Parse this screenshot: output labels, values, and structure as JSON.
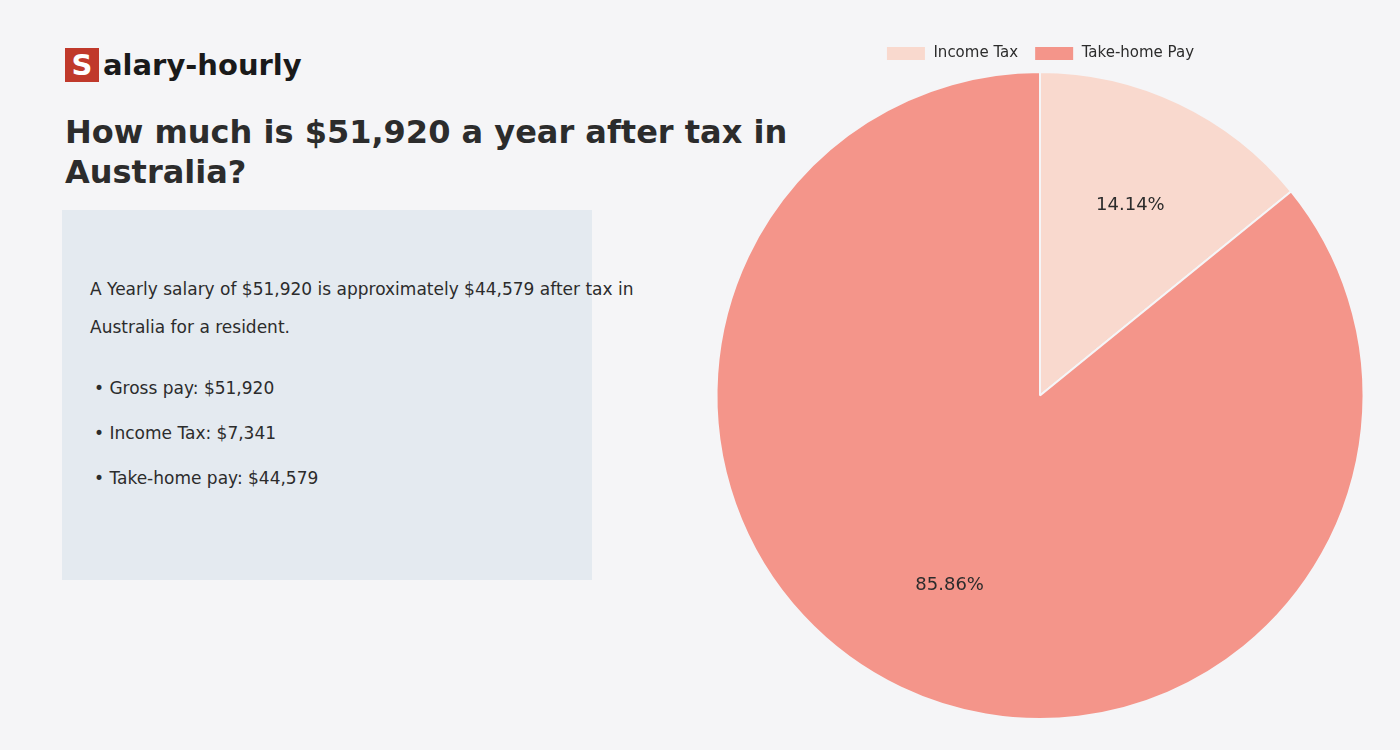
{
  "chart_data": {
    "type": "pie",
    "title": [
      "How much is $51,920 a year after tax in",
      "Australia?"
    ],
    "annotations": [
      "Salary-hourly",
      "A Yearly salary of $51,920 is approximately $44,579 after tax in",
      "Australia for a resident.",
      "• Gross pay: $51,920",
      "• Income Tax: $7,341",
      "• Take-home pay: $44,579"
    ],
    "categories": [
      "Income Tax",
      "Take-home Pay"
    ],
    "values": [
      14.14,
      85.86
    ],
    "value_labels": [
      "14.14%",
      "85.86%"
    ],
    "colors": [
      "#f9d9ce",
      "#f4958a"
    ],
    "data_labels": true,
    "legend": "top"
  }
}
